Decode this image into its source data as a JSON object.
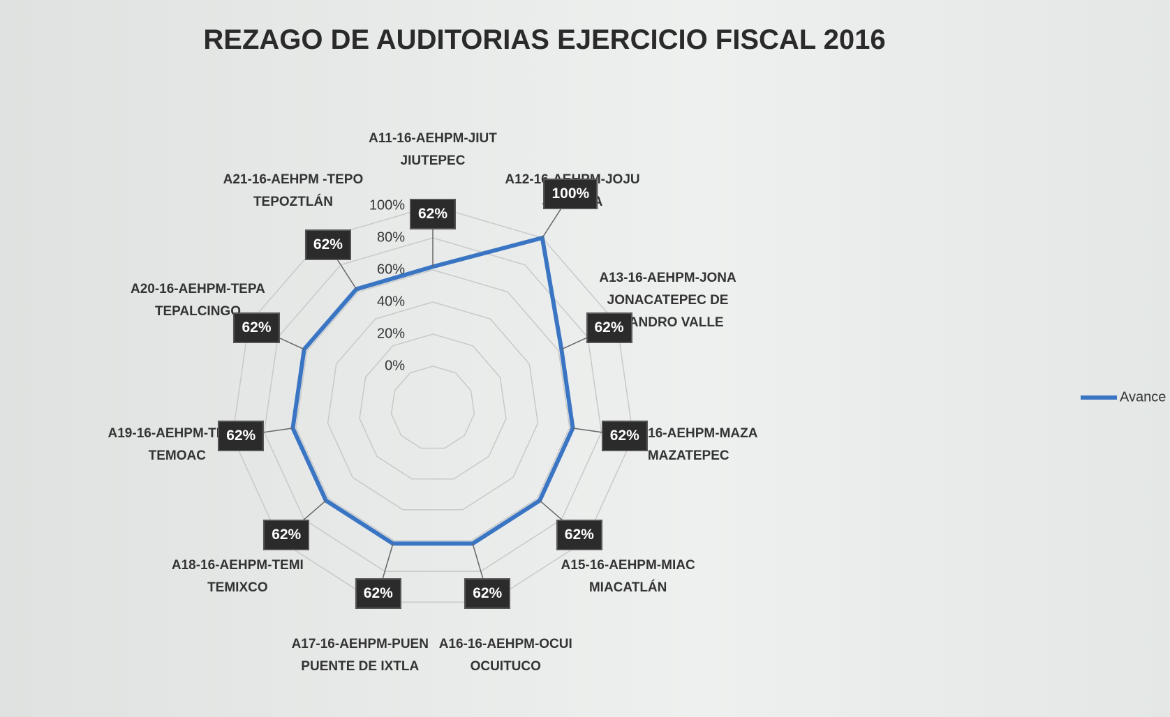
{
  "chart_data": {
    "type": "radar",
    "title": "REZAGO DE AUDITORIAS EJERCICIO FISCAL 2016",
    "categories": [
      "A11-16-AEHPM-JIUT JIUTEPEC",
      "A12-16-AEHPM-JOJU JOJUTLA",
      "A13-16-AEHPM-JONA JONACATEPEC DE LEANDRO VALLE",
      "A14-16-AEHPM-MAZA MAZATEPEC",
      "A15-16-AEHPM-MIAC MIACATLÁN",
      "A16-16-AEHPM-OCUI OCUITUCO",
      "A17-16-AEHPM-PUEN PUENTE DE IXTLA",
      "A18-16-AEHPM-TEMI TEMIXCO",
      "A19-16-AEHPM-TEMO TEMOAC",
      "A20-16-AEHPM-TEPA TEPALCINGO",
      "A21-16-AEHPM -TEPO TEPOZTLÁN"
    ],
    "series": [
      {
        "name": "Avance",
        "color": "#3a75c4",
        "values": [
          62,
          100,
          62,
          62,
          62,
          62,
          62,
          62,
          62,
          62,
          62
        ],
        "value_labels": [
          "62%",
          "100%",
          "62%",
          "62%",
          "62%",
          "62%",
          "62%",
          "62%",
          "62%",
          "62%",
          "62%"
        ]
      }
    ],
    "rlim": [
      0,
      100
    ],
    "rticks": [
      {
        "value": 0,
        "label": "0%"
      },
      {
        "value": 20,
        "label": "20%"
      },
      {
        "value": 40,
        "label": "40%"
      },
      {
        "value": 60,
        "label": "60%"
      },
      {
        "value": 80,
        "label": "80%"
      },
      {
        "value": 100,
        "label": "100%"
      }
    ],
    "grid": true,
    "legend": "right"
  }
}
